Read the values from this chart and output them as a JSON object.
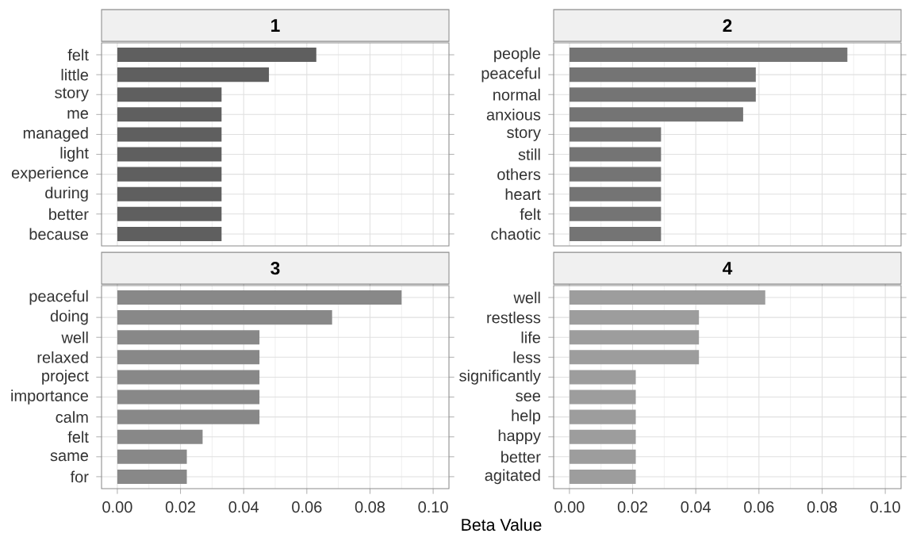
{
  "chart_data": [
    {
      "type": "bar",
      "orientation": "horizontal",
      "title": "1",
      "categories": [
        "felt",
        "little",
        "story",
        "me",
        "managed",
        "light",
        "experience",
        "during",
        "better",
        "because"
      ],
      "values": [
        0.063,
        0.048,
        0.033,
        0.033,
        0.033,
        0.033,
        0.033,
        0.033,
        0.033,
        0.033
      ],
      "color": "#5f5f5f",
      "xlim": [
        -0.005,
        0.105
      ],
      "xticks": [
        0,
        0.02,
        0.04,
        0.06,
        0.08,
        0.1
      ],
      "grid": true,
      "tick_labels": "y"
    },
    {
      "type": "bar",
      "orientation": "horizontal",
      "title": "2",
      "categories": [
        "people",
        "peaceful",
        "normal",
        "anxious",
        "story",
        "still",
        "others",
        "heart",
        "felt",
        "chaotic"
      ],
      "values": [
        0.088,
        0.059,
        0.059,
        0.055,
        0.029,
        0.029,
        0.029,
        0.029,
        0.029,
        0.029
      ],
      "color": "#747474",
      "xlim": [
        -0.005,
        0.105
      ],
      "xticks": [
        0,
        0.02,
        0.04,
        0.06,
        0.08,
        0.1
      ],
      "grid": true,
      "tick_labels": "y"
    },
    {
      "type": "bar",
      "orientation": "horizontal",
      "title": "3",
      "xlabel": "Beta Value",
      "categories": [
        "peaceful",
        "doing",
        "well",
        "relaxed",
        "project",
        "importance",
        "calm",
        "felt",
        "same",
        "for"
      ],
      "values": [
        0.09,
        0.068,
        0.045,
        0.045,
        0.045,
        0.045,
        0.045,
        0.027,
        0.022,
        0.022
      ],
      "color": "#888888",
      "xlim": [
        -0.005,
        0.105
      ],
      "xticks": [
        {
          "value": 0,
          "label": "0.00"
        },
        {
          "value": 0.02,
          "label": "0.02"
        },
        {
          "value": 0.04,
          "label": "0.04"
        },
        {
          "value": 0.06,
          "label": "0.06"
        },
        {
          "value": 0.08,
          "label": "0.08"
        },
        {
          "value": 0.1,
          "label": "0.10"
        }
      ],
      "grid": true
    },
    {
      "type": "bar",
      "orientation": "horizontal",
      "title": "4",
      "categories": [
        "well",
        "restless",
        "life",
        "less",
        "significantly",
        "see",
        "help",
        "happy",
        "better",
        "agitated"
      ],
      "values": [
        0.062,
        0.041,
        0.041,
        0.041,
        0.021,
        0.021,
        0.021,
        0.021,
        0.021,
        0.021
      ],
      "color": "#9d9d9d",
      "xlim": [
        -0.005,
        0.105
      ],
      "xticks": [
        {
          "value": 0,
          "label": "0.00"
        },
        {
          "value": 0.02,
          "label": "0.02"
        },
        {
          "value": 0.04,
          "label": "0.04"
        },
        {
          "value": 0.06,
          "label": "0.06"
        },
        {
          "value": 0.08,
          "label": "0.08"
        },
        {
          "value": 0.1,
          "label": "0.10"
        }
      ],
      "grid": true
    }
  ]
}
